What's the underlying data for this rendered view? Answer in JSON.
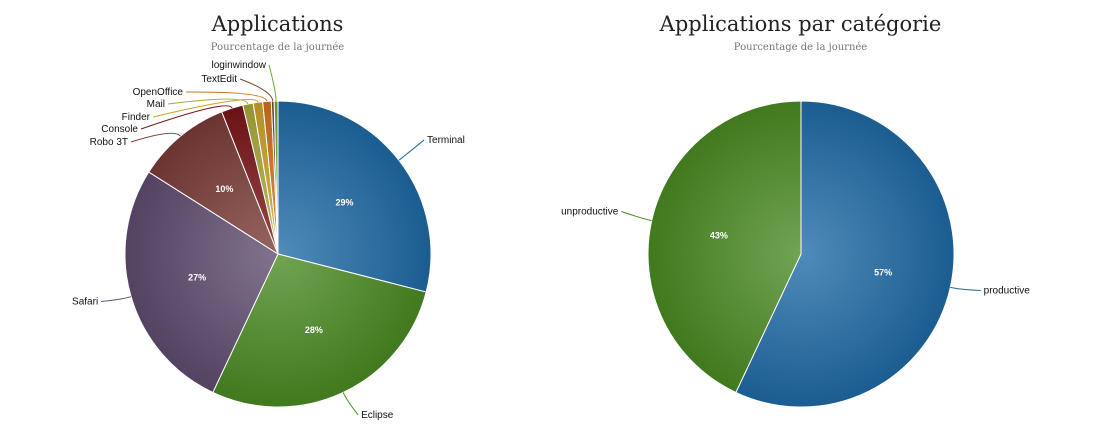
{
  "chart_data": [
    {
      "type": "pie",
      "title": "Applications",
      "subtitle": "Pourcentage de la journée",
      "slices": [
        {
          "label": "Terminal",
          "value": 29,
          "value_label": "29%",
          "color": "#1f6aa5"
        },
        {
          "label": "Eclipse",
          "value": 28,
          "value_label": "28%",
          "color": "#4a8a22"
        },
        {
          "label": "Safari",
          "value": 27,
          "value_label": "27%",
          "color": "#5e4b6e"
        },
        {
          "label": "Robo 3T",
          "value": 10,
          "value_label": "10%",
          "color": "#7a3b36"
        },
        {
          "label": "Console",
          "value": 2.3,
          "value_label": "",
          "color": "#7a1519"
        },
        {
          "label": "Mail",
          "value": 1.1,
          "value_label": "",
          "color": "#a8a83a"
        },
        {
          "label": "Finder",
          "value": 1.0,
          "value_label": "",
          "color": "#c9a227"
        },
        {
          "label": "OpenOffice",
          "value": 0.9,
          "value_label": "",
          "color": "#d2711d"
        },
        {
          "label": "TextEdit",
          "value": 0.3,
          "value_label": "",
          "color": "#7a4a2a"
        },
        {
          "label": "loginwindow",
          "value": 0.4,
          "value_label": "",
          "color": "#6aaa3a"
        }
      ]
    },
    {
      "type": "pie",
      "title": "Applications par catégorie",
      "subtitle": "Pourcentage de la journée",
      "slices": [
        {
          "label": "productive",
          "value": 57,
          "value_label": "57%",
          "color": "#1f6aa5"
        },
        {
          "label": "unproductive",
          "value": 43,
          "value_label": "43%",
          "color": "#4a8a22"
        }
      ]
    }
  ]
}
